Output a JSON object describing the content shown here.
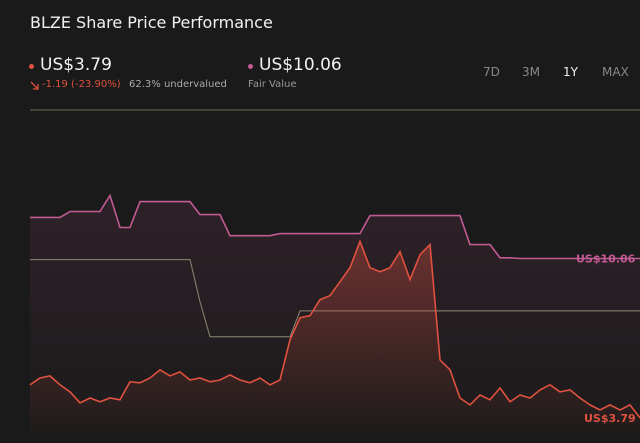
{
  "header": {
    "title": "BLZE Share Price Performance",
    "price": "US$3.79",
    "change": "-1.19 (-23.90%)",
    "undervalued": "62.3% undervalued",
    "fair_value": "US$10.06",
    "fair_value_caption": "Fair Value",
    "ranges": [
      "7D",
      "3M",
      "1Y",
      "MAX"
    ],
    "selected_range": 2
  },
  "chart_data": {
    "type": "line",
    "ylim": [
      2.8,
      16.3
    ],
    "series": [
      {
        "color": "#e0513f",
        "values": [
          5.09,
          5.36,
          5.44,
          5.09,
          4.81,
          4.38,
          4.57,
          4.42,
          4.57,
          4.5,
          5.21,
          5.17,
          5.36,
          5.68,
          5.44,
          5.6,
          5.28,
          5.36,
          5.21,
          5.28,
          5.48,
          5.28,
          5.17,
          5.36,
          5.09,
          5.28,
          6.86,
          7.73,
          7.81,
          8.44,
          8.6,
          9.15,
          9.7,
          10.73,
          9.7,
          9.54,
          9.7,
          10.33,
          9.23,
          10.21,
          10.61,
          6.07,
          5.68,
          4.57,
          4.3,
          4.69,
          4.5,
          4.97,
          4.42,
          4.69,
          4.57,
          4.89,
          5.09,
          4.81,
          4.89,
          4.57,
          4.3,
          4.1,
          4.3,
          4.1,
          4.3,
          3.79
        ]
      },
      {
        "color": "#c25a93",
        "values": [
          11.68,
          11.68,
          11.68,
          11.68,
          11.91,
          11.91,
          11.91,
          11.91,
          12.54,
          11.28,
          11.28,
          12.3,
          12.3,
          12.3,
          12.3,
          12.3,
          12.3,
          11.79,
          11.79,
          11.79,
          10.96,
          10.96,
          10.96,
          10.96,
          10.96,
          11.04,
          11.04,
          11.04,
          11.04,
          11.04,
          11.04,
          11.04,
          11.04,
          11.04,
          11.75,
          11.75,
          11.75,
          11.75,
          11.75,
          11.75,
          11.75,
          11.75,
          11.75,
          11.75,
          10.61,
          10.61,
          10.61,
          10.09,
          10.09,
          10.06,
          10.06,
          10.06,
          10.06,
          10.06,
          10.06,
          10.06,
          10.06,
          10.06,
          10.06,
          10.06,
          10.06,
          10.06
        ]
      },
      {
        "color": "#8a8a70",
        "values": [
          10.02,
          10.02,
          10.02,
          10.02,
          10.02,
          10.02,
          10.02,
          10.02,
          10.02,
          10.02,
          10.02,
          10.02,
          10.02,
          10.02,
          10.02,
          10.02,
          10.02,
          8.36,
          6.98,
          6.98,
          6.98,
          6.98,
          6.98,
          6.98,
          6.98,
          6.98,
          6.98,
          8.0,
          8.0,
          8.0,
          8.0,
          8.0,
          8.0,
          8.0,
          8.0,
          8.0,
          8.0,
          8.0,
          8.0,
          8.0,
          8.0,
          8.0,
          8.0,
          8.0,
          8.0,
          8.0,
          8.0,
          8.0,
          8.0,
          8.0,
          8.0,
          8.0,
          8.0,
          8.0,
          8.0,
          8.0,
          8.0,
          8.0,
          8.0,
          8.0,
          8.0,
          8.0
        ]
      }
    ]
  }
}
